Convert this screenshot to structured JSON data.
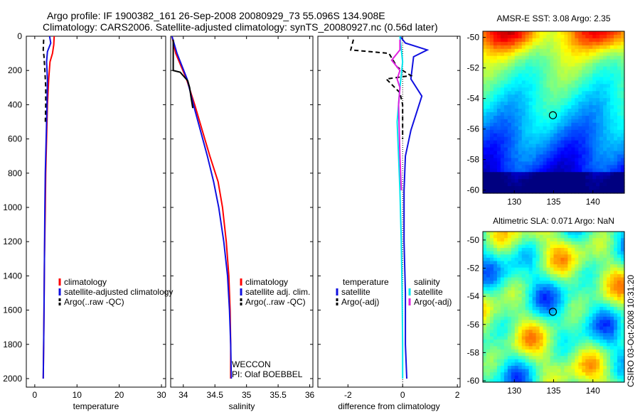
{
  "title_line1": "Argo profile: IF 1900382_161 26-Sep-2008 20080929_73 55.096S 134.908E",
  "title_line2": "Climatology: CARS2006. Satellite-adjusted climatology: synTS_20080927.nc (0.56d later)",
  "side_stamp": "CSIRO 03-Oct-2008 10:31:20",
  "colors": {
    "red": "#ff0000",
    "blue": "#1010e0",
    "black": "#000000",
    "cyan": "#00e5ee",
    "magenta": "#e020e0"
  },
  "chart_data": [
    {
      "type": "line",
      "id": "temperature",
      "xlabel": "temperature",
      "ylabel": "",
      "xlim": [
        -2,
        31
      ],
      "ylim": [
        0,
        2050
      ],
      "y_inverted": true,
      "xticks": [
        "0",
        "10",
        "20",
        "30"
      ],
      "xtick_values": [
        0,
        10,
        20,
        30
      ],
      "yticks": [
        "0",
        "200",
        "400",
        "600",
        "800",
        "1000",
        "1200",
        "1400",
        "1600",
        "1800",
        "2000"
      ],
      "ytick_values": [
        0,
        200,
        400,
        600,
        800,
        1000,
        1200,
        1400,
        1600,
        1800,
        2000
      ],
      "legend": [
        "climatology",
        "satellite-adjusted climatology",
        "Argo(..raw -QC)"
      ],
      "series": [
        {
          "name": "climatology",
          "color": "red",
          "dash": false,
          "points": [
            [
              4.6,
              0
            ],
            [
              4.5,
              50
            ],
            [
              4.2,
              100
            ],
            [
              3.6,
              150
            ],
            [
              3.3,
              250
            ],
            [
              3.0,
              400
            ],
            [
              2.8,
              600
            ],
            [
              2.6,
              800
            ],
            [
              2.5,
              1000
            ],
            [
              2.3,
              1300
            ],
            [
              2.2,
              1600
            ],
            [
              2.1,
              1800
            ],
            [
              2.0,
              2000
            ]
          ]
        },
        {
          "name": "satellite-adjusted climatology",
          "color": "blue",
          "dash": false,
          "points": [
            [
              3.5,
              0
            ],
            [
              3.8,
              40
            ],
            [
              3.0,
              90
            ],
            [
              2.8,
              150
            ],
            [
              3.0,
              250
            ],
            [
              2.9,
              400
            ],
            [
              2.7,
              600
            ],
            [
              2.5,
              800
            ],
            [
              2.4,
              1000
            ],
            [
              2.3,
              1300
            ],
            [
              2.2,
              1600
            ],
            [
              2.1,
              1800
            ],
            [
              2.0,
              2000
            ]
          ]
        },
        {
          "name": "Argo(..raw -QC)",
          "color": "black",
          "dash": true,
          "points": [
            [
              2.1,
              20
            ],
            [
              2.0,
              80
            ],
            [
              2.2,
              120
            ],
            [
              2.4,
              200
            ],
            [
              2.6,
              300
            ],
            [
              2.6,
              400
            ],
            [
              2.5,
              500
            ]
          ]
        }
      ]
    },
    {
      "type": "line",
      "id": "salinity",
      "xlabel": "salinity",
      "xlim": [
        33.8,
        36.05
      ],
      "ylim": [
        0,
        2050
      ],
      "y_inverted": true,
      "xticks": [
        "34",
        "34.5",
        "35",
        "35.5",
        "36"
      ],
      "xtick_values": [
        34,
        34.5,
        35,
        35.5,
        36
      ],
      "legend": [
        "climatology",
        "satellite adj. clim.",
        "Argo(..raw -QC)"
      ],
      "annotation": [
        "WECCON",
        "PI: Olaf BOEBBEL"
      ],
      "series": [
        {
          "name": "climatology",
          "color": "red",
          "dash": false,
          "points": [
            [
              33.82,
              0
            ],
            [
              33.88,
              100
            ],
            [
              34.05,
              250
            ],
            [
              34.18,
              400
            ],
            [
              34.3,
              550
            ],
            [
              34.42,
              700
            ],
            [
              34.55,
              850
            ],
            [
              34.62,
              1000
            ],
            [
              34.68,
              1200
            ],
            [
              34.72,
              1400
            ],
            [
              34.74,
              1600
            ],
            [
              34.75,
              1800
            ],
            [
              34.75,
              2000
            ]
          ]
        },
        {
          "name": "satellite adj. clim.",
          "color": "blue",
          "dash": false,
          "points": [
            [
              33.82,
              0
            ],
            [
              33.9,
              100
            ],
            [
              34.06,
              250
            ],
            [
              34.16,
              400
            ],
            [
              34.27,
              550
            ],
            [
              34.38,
              700
            ],
            [
              34.48,
              850
            ],
            [
              34.56,
              1000
            ],
            [
              34.64,
              1200
            ],
            [
              34.7,
              1400
            ],
            [
              34.73,
              1600
            ],
            [
              34.75,
              1800
            ],
            [
              34.76,
              2000
            ]
          ]
        },
        {
          "name": "Argo(..raw -QC)",
          "color": "black",
          "dash": false,
          "points": [
            [
              33.84,
              20
            ],
            [
              33.84,
              200
            ],
            [
              33.95,
              210
            ],
            [
              34.07,
              260
            ],
            [
              34.1,
              300
            ],
            [
              34.12,
              350
            ],
            [
              34.15,
              420
            ]
          ]
        }
      ]
    },
    {
      "type": "line",
      "id": "difference",
      "xlabel": "difference from climatology",
      "xlim": [
        -3.1,
        2.1
      ],
      "ylim": [
        0,
        2050
      ],
      "y_inverted": true,
      "xticks": [
        "-2",
        "0",
        "2"
      ],
      "xtick_values": [
        -2,
        0,
        2
      ],
      "legend_temperature_heading": "temperature",
      "legend_salinity_heading": "salinity",
      "legend_temperature": [
        "satellite",
        "Argo(-adj)"
      ],
      "legend_salinity": [
        "satellite",
        "Argo(-adj)"
      ],
      "series": [
        {
          "name": "temperature satellite",
          "color": "blue",
          "dash": false,
          "points": [
            [
              -0.1,
              0
            ],
            [
              0.1,
              40
            ],
            [
              0.9,
              80
            ],
            [
              0.4,
              120
            ],
            [
              0.3,
              250
            ],
            [
              0.7,
              350
            ],
            [
              0.5,
              450
            ],
            [
              0.3,
              550
            ],
            [
              0.1,
              700
            ],
            [
              0.05,
              900
            ],
            [
              0.05,
              1200
            ],
            [
              0.1,
              1500
            ],
            [
              0.1,
              1800
            ],
            [
              0.15,
              2000
            ]
          ]
        },
        {
          "name": "temperature Argo(-adj)",
          "color": "black",
          "dash": true,
          "points": [
            [
              -1.8,
              20
            ],
            [
              -1.9,
              80
            ],
            [
              -0.5,
              100
            ],
            [
              -0.2,
              180
            ],
            [
              0.3,
              230
            ],
            [
              -0.6,
              250
            ],
            [
              -0.1,
              330
            ],
            [
              0,
              400
            ],
            [
              0,
              600
            ]
          ]
        },
        {
          "name": "salinity satellite",
          "color": "cyan",
          "dash": false,
          "points": [
            [
              -0.1,
              0
            ],
            [
              0.0,
              150
            ],
            [
              -0.1,
              300
            ],
            [
              -0.2,
              500
            ],
            [
              -0.15,
              700
            ],
            [
              -0.1,
              900
            ],
            [
              -0.05,
              1200
            ],
            [
              -0.02,
              1500
            ],
            [
              0.0,
              1800
            ],
            [
              0.0,
              2000
            ]
          ]
        },
        {
          "name": "salinity Argo(-adj)",
          "color": "magenta",
          "dash": false,
          "points": [
            [
              -0.1,
              20
            ],
            [
              -0.1,
              80
            ],
            [
              -0.4,
              140
            ],
            [
              -0.1,
              200
            ],
            [
              -0.2,
              250
            ],
            [
              -0.1,
              300
            ],
            [
              -0.15,
              400
            ],
            [
              -0.1,
              700
            ],
            [
              -0.05,
              900
            ]
          ]
        }
      ]
    }
  ],
  "maps": [
    {
      "id": "sst",
      "title": "AMSR-E SST: 3.08 Argo: 2.35",
      "xticks": [
        "130",
        "135",
        "140"
      ],
      "xtick_values": [
        130,
        135,
        140
      ],
      "yticks": [
        "-50",
        "-52",
        "-54",
        "-56",
        "-58",
        "-60"
      ],
      "ytick_values": [
        -50,
        -52,
        -54,
        -56,
        -58,
        -60
      ],
      "xlim": [
        126,
        144
      ],
      "ylim": [
        -60.2,
        -49.6
      ],
      "float_lon": 134.908,
      "float_lat": -55.096
    },
    {
      "id": "sla",
      "title": "Altimetric SLA: 0.071 Argo: NaN",
      "xticks": [
        "130",
        "135",
        "140"
      ],
      "xtick_values": [
        130,
        135,
        140
      ],
      "yticks": [
        "-50",
        "-52",
        "-54",
        "-56",
        "-58",
        "-60"
      ],
      "ytick_values": [
        -50,
        -52,
        -54,
        -56,
        -58,
        -60
      ],
      "xlim": [
        126,
        144
      ],
      "ylim": [
        -60.1,
        -49.4
      ],
      "float_lon": 134.908,
      "float_lat": -55.096
    }
  ]
}
